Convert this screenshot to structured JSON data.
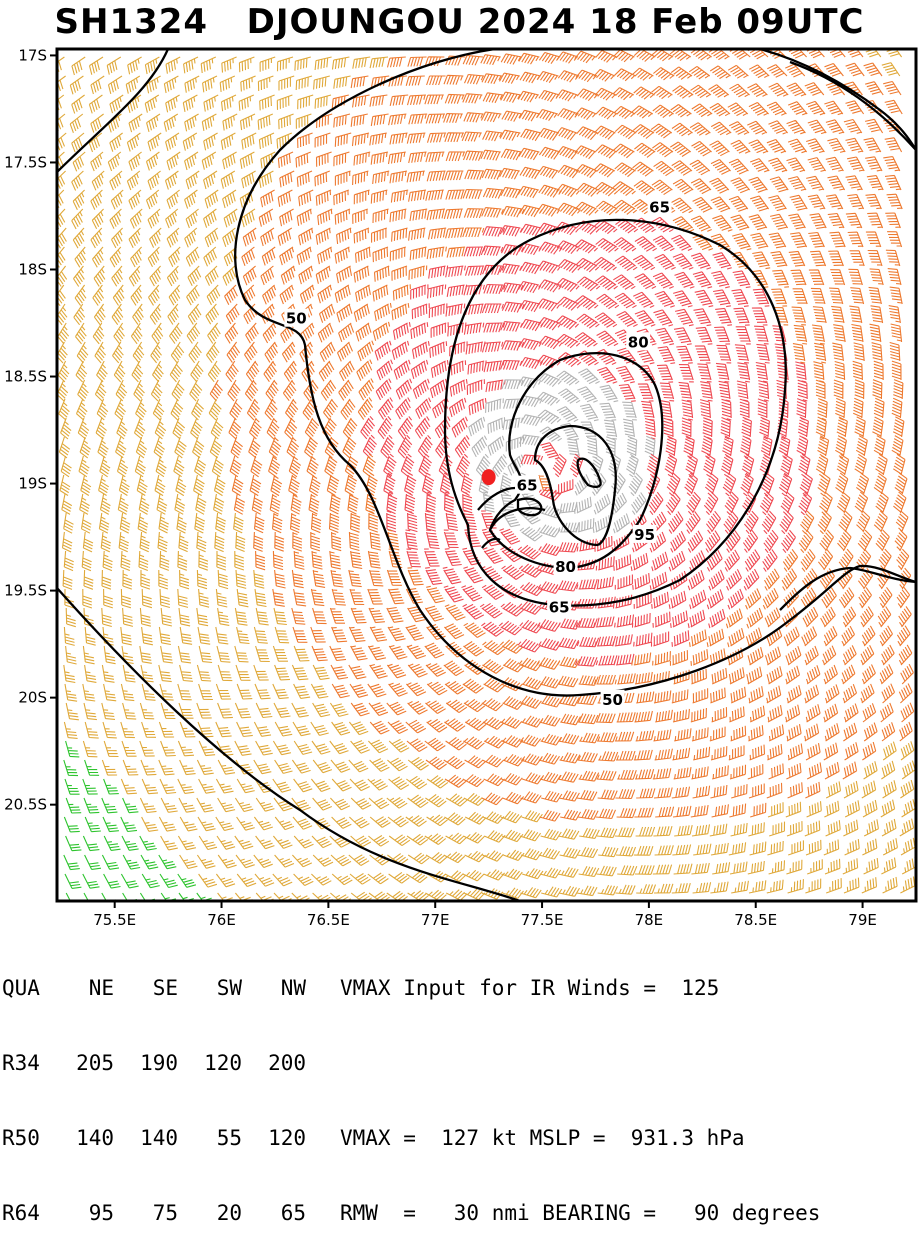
{
  "title": "SH1324   DJOUNGOU 2024 18 Feb 09UTC",
  "chart_data": {
    "type": "wind-barb-map",
    "title": "SH1324   DJOUNGOU 2024 18 Feb 09UTC",
    "lon_range": [
      75.23,
      79.25
    ],
    "lat_range": [
      -20.95,
      -16.97
    ],
    "x_ticks": [
      75.5,
      76.0,
      76.5,
      77.0,
      77.5,
      78.0,
      78.5,
      79.0
    ],
    "x_tick_labels": [
      "75.5E",
      "76E",
      "76.5E",
      "77E",
      "77.5E",
      "78E",
      "78.5E",
      "79E"
    ],
    "y_ticks": [
      -17.0,
      -17.5,
      -18.0,
      -18.5,
      -19.0,
      -19.5,
      -20.0,
      -20.5
    ],
    "y_tick_labels": [
      "17S",
      "17.5S",
      "18S",
      "18.5S",
      "19S",
      "19.5S",
      "20S",
      "20.5S"
    ],
    "storm_center": {
      "lon": 77.25,
      "lat": -18.97
    },
    "contour_levels": [
      34,
      50,
      65,
      80,
      95
    ],
    "contour_labels": [
      {
        "text": "50",
        "lon": 76.35,
        "lat": -18.23
      },
      {
        "text": "65",
        "lon": 78.05,
        "lat": -17.71
      },
      {
        "text": "80",
        "lon": 77.95,
        "lat": -18.34
      },
      {
        "text": "65",
        "lon": 77.43,
        "lat": -19.01
      },
      {
        "text": "95",
        "lon": 77.98,
        "lat": -19.24
      },
      {
        "text": "80",
        "lon": 77.61,
        "lat": -19.39
      },
      {
        "text": "65",
        "lon": 77.58,
        "lat": -19.58
      },
      {
        "text": "50",
        "lon": 77.83,
        "lat": -20.01
      }
    ],
    "speed_colors": {
      "lt34": "#2ec42e",
      "34-50": "#e0a93a",
      "50-65": "#ee7a30",
      "65-95": "#ef4a52",
      "ge95": "#b4b4b4"
    }
  },
  "stats": {
    "header": [
      "QUA",
      "NE",
      "SE",
      "SW",
      "NW"
    ],
    "rows": [
      [
        "R34",
        "205",
        "190",
        "120",
        "200"
      ],
      [
        "R50",
        "140",
        "140",
        "55",
        "120"
      ],
      [
        "R64",
        "95",
        "75",
        "20",
        "65"
      ]
    ],
    "notes": [
      "VMAX Input for IR Winds =  125",
      "",
      "VMAX =  127 kt MSLP =  931.3 hPa",
      "RMW  =   30 nmi BEARING =   90 degrees"
    ]
  }
}
